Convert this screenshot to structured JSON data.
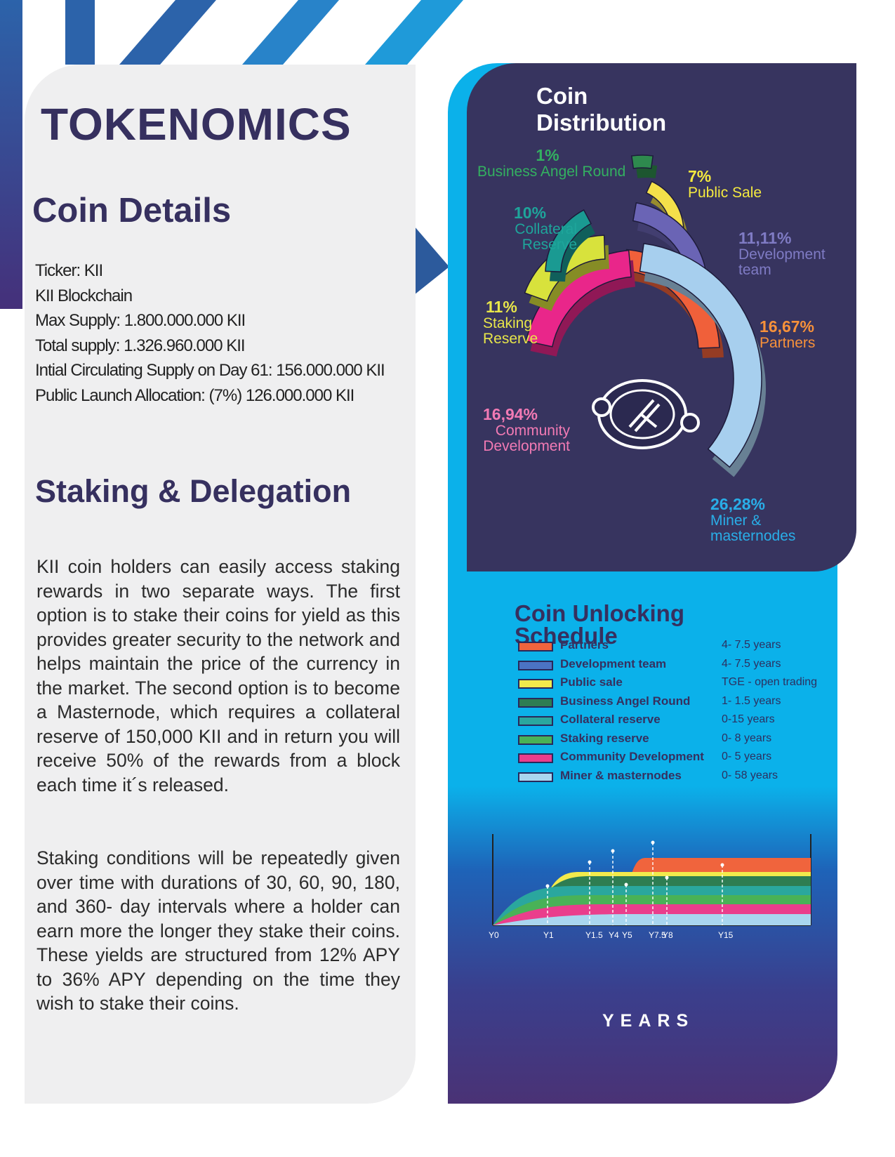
{
  "page": {
    "title": "TOKENOMICS",
    "coin_details": {
      "title": "Coin Details",
      "items": [
        "Ticker: KII",
        "KII Blockchain",
        "Max Supply: 1.800.000.000 KII",
        "Total supply: 1.326.960.000 KII",
        "Intial Circulating Supply on Day 61: 156.000.000 KII",
        "Public Launch Allocation: (7%) 126.000.000 KII"
      ]
    },
    "staking": {
      "title": "Staking & Delegation",
      "paragraph1": "KII coin holders can easily access staking rewards in two separate ways. The first option is to stake their coins for yield as this provides greater security to the network and helps maintain the price of the currency in the market. The second option is to become a Masternode, which requires a collateral reserve of 150,000 KII and in return you will receive 50% of the rewards from a block each time it´s released.",
      "paragraph2": "Staking conditions will be repeatedly given over time with durations of 30, 60, 90, 180, and 360- day intervals where a holder can earn more the longer they stake their coins. These yields are structured from 12% APY to 36% APY depending on the time they wish to stake their coins."
    }
  },
  "chart_data": [
    {
      "type": "pie",
      "title": "Coin Distribution",
      "slices": [
        {
          "label": "Business Angel Round",
          "pct_text": "1%",
          "value": 1,
          "color": "#2e8a4e"
        },
        {
          "label": "Public Sale",
          "pct_text": "7%",
          "value": 7,
          "color": "#f4e04a"
        },
        {
          "label": "Development team",
          "pct_text": "11,11%",
          "value": 11.11,
          "color": "#6a64b5"
        },
        {
          "label": "Partners",
          "pct_text": "16,67%",
          "value": 16.67,
          "color": "#f0603a"
        },
        {
          "label": "Miner & masternodes",
          "pct_text": "26,28%",
          "value": 26.28,
          "color": "#a7cfee"
        },
        {
          "label": "Community Development",
          "pct_text": "16,94%",
          "value": 16.94,
          "color": "#e9268a"
        },
        {
          "label": "Staking Reserve",
          "pct_text": "11%",
          "value": 11,
          "color": "#d8e23c"
        },
        {
          "label": "Collateral Reserve",
          "pct_text": "10%",
          "value": 10,
          "color": "#1a9a92"
        }
      ],
      "label_colors": {
        "Business Angel Round": "#33b060",
        "Public Sale": "#f5ea3f",
        "Development team": "#7f7bc4",
        "Partners": "#f7913a",
        "Miner & masternodes": "#29aee8",
        "Community Development": "#f27ab4",
        "Staking Reserve": "#e8e64a",
        "Collateral Reserve": "#1ea59b"
      }
    },
    {
      "type": "area",
      "title": "Coin Unlocking Schedule",
      "xlabel": "YEARS",
      "x_ticks": [
        "Y0",
        "Y1",
        "Y1.5",
        "Y4",
        "Y5",
        "Y7.5",
        "Y8",
        "Y15"
      ],
      "series": [
        {
          "name": "Partners",
          "duration": "4- 7.5 years",
          "color": "#f0643d"
        },
        {
          "name": "Development team",
          "duration": "4- 7.5 years",
          "color": "#4b73c4"
        },
        {
          "name": "Public sale",
          "duration": "TGE - open trading",
          "color": "#f2ea4c"
        },
        {
          "name": "Business Angel Round",
          "duration": "1- 1.5 years",
          "color": "#2e7d52"
        },
        {
          "name": "Collateral reserve",
          "duration": "0-15 years",
          "color": "#2aa79e"
        },
        {
          "name": "Staking reserve",
          "duration": "0- 8 years",
          "color": "#49b257"
        },
        {
          "name": "Community Development",
          "duration": "0- 5 years",
          "color": "#ea3e8c"
        },
        {
          "name": "Miner & masternodes",
          "duration": "0- 58 years",
          "color": "#a9d6ef"
        }
      ]
    }
  ]
}
